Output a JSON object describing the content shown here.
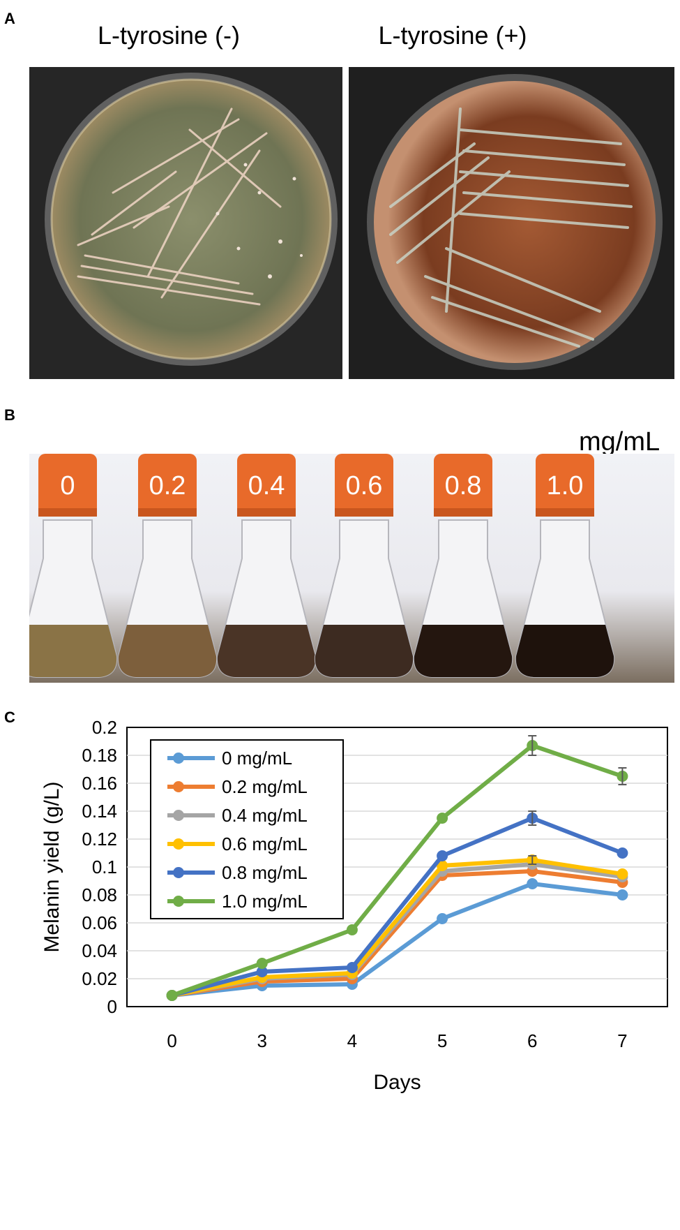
{
  "panels": {
    "a": {
      "letter": "A",
      "left_title": "L-tyrosine (-)",
      "right_title": "L-tyrosine (+)"
    },
    "b": {
      "letter": "B",
      "unit": "mg/mL",
      "flask_labels": [
        "0",
        "0.2",
        "0.4",
        "0.6",
        "0.8",
        "1.0"
      ],
      "liquid_colors": [
        "#8a7346",
        "#7d5f3c",
        "#4a3426",
        "#3d2b21",
        "#24160f",
        "#1e120c"
      ]
    },
    "c": {
      "letter": "C"
    }
  },
  "chart_data": {
    "type": "line",
    "xlabel": "Days",
    "ylabel": "Melanin yield (g/L)",
    "categories": [
      "0",
      "3",
      "4",
      "5",
      "6",
      "7"
    ],
    "ylim": [
      0,
      0.2
    ],
    "yticks": [
      "0",
      "0.02",
      "0.04",
      "0.06",
      "0.08",
      "0.1",
      "0.12",
      "0.14",
      "0.16",
      "0.18",
      "0.2"
    ],
    "grid": true,
    "legend_position": "top-left",
    "series": [
      {
        "name": "0 mg/mL",
        "color": "#5B9BD5",
        "values": [
          0.008,
          0.015,
          0.016,
          0.063,
          0.088,
          0.08
        ]
      },
      {
        "name": "0.2 mg/mL",
        "color": "#ED7D31",
        "values": [
          0.008,
          0.018,
          0.02,
          0.094,
          0.097,
          0.089
        ]
      },
      {
        "name": "0.4 mg/mL",
        "color": "#A5A5A5",
        "values": [
          0.008,
          0.02,
          0.023,
          0.097,
          0.102,
          0.093
        ]
      },
      {
        "name": "0.6 mg/mL",
        "color": "#FFC000",
        "values": [
          0.008,
          0.021,
          0.024,
          0.101,
          0.105,
          0.095
        ]
      },
      {
        "name": "0.8 mg/mL",
        "color": "#4472C4",
        "values": [
          0.008,
          0.025,
          0.028,
          0.108,
          0.135,
          0.11
        ]
      },
      {
        "name": "1.0 mg/mL",
        "color": "#70AD47",
        "values": [
          0.008,
          0.031,
          0.055,
          0.135,
          0.187,
          0.165
        ]
      }
    ],
    "error_bars": [
      {
        "series": "1.0 mg/mL",
        "category": "6",
        "err": 0.007
      },
      {
        "series": "1.0 mg/mL",
        "category": "7",
        "err": 0.006
      },
      {
        "series": "0.8 mg/mL",
        "category": "6",
        "err": 0.005
      },
      {
        "series": "0.6 mg/mL",
        "category": "6",
        "err": 0.003
      }
    ]
  }
}
